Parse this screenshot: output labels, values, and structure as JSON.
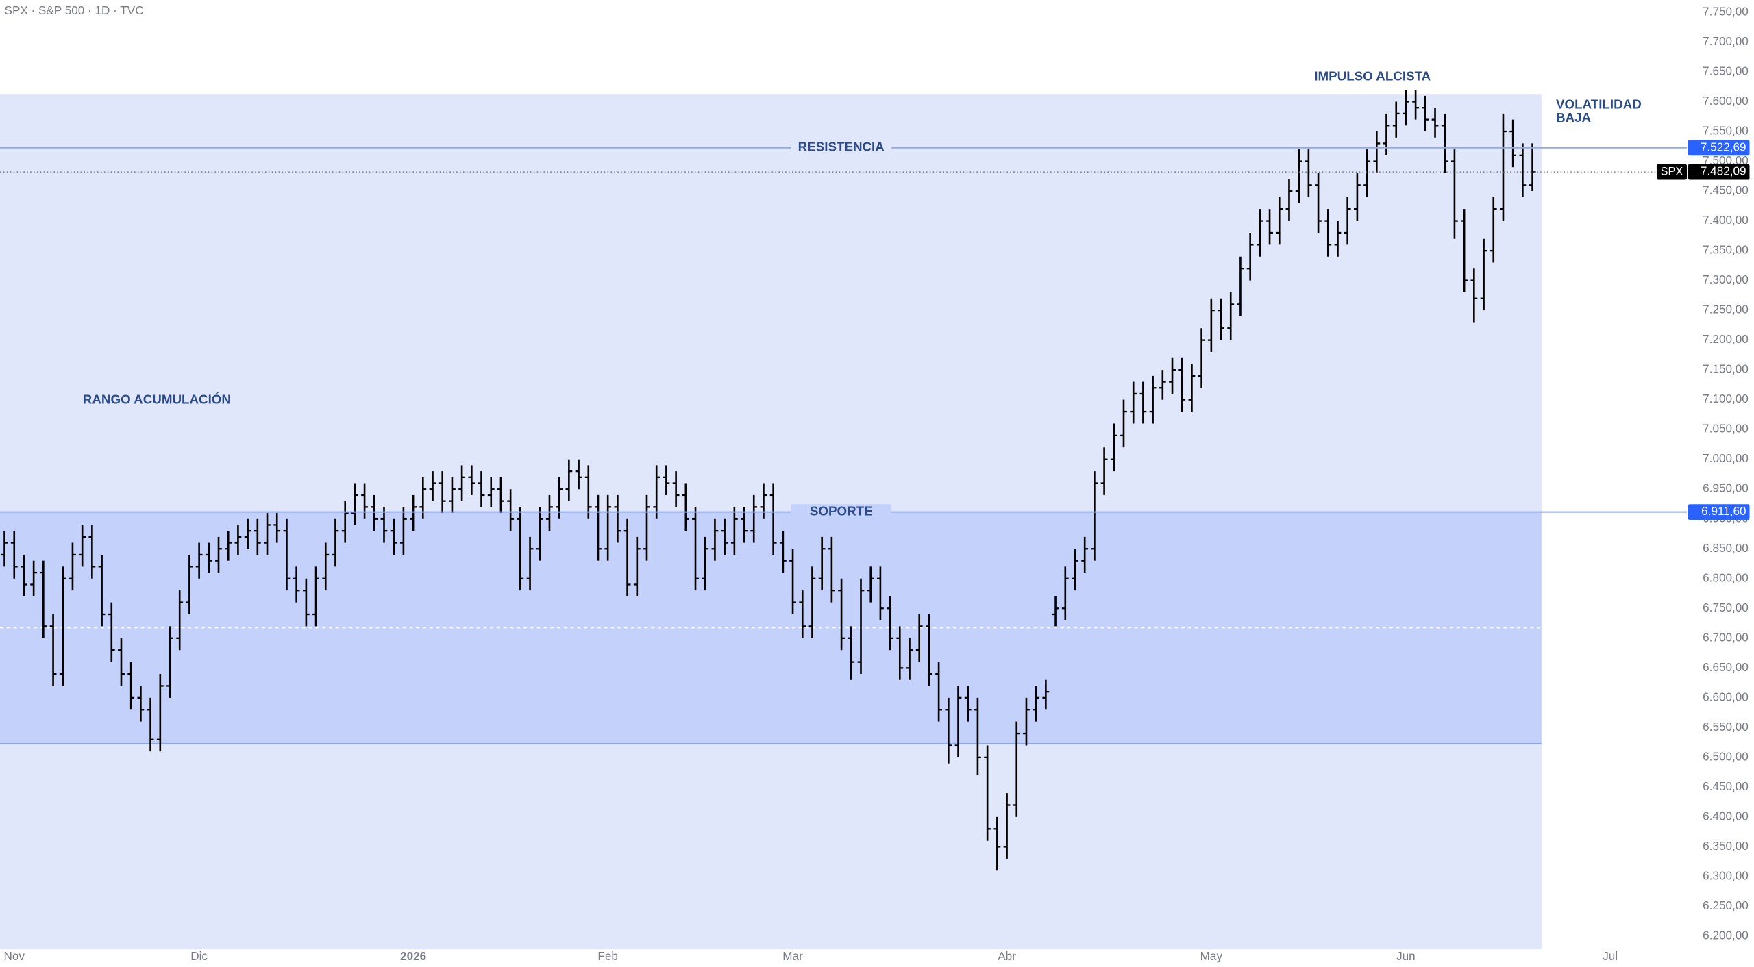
{
  "chart_data": {
    "type": "ohlc",
    "title": "SPX · S&P 500 · 1D · TVC",
    "categories": [
      null,
      null,
      null,
      null,
      null,
      null,
      null,
      null,
      null,
      null,
      null,
      null,
      null,
      null,
      null,
      null,
      null,
      null,
      null,
      null,
      null,
      null,
      null,
      null,
      null,
      null,
      null,
      null,
      null,
      null,
      null,
      null,
      null,
      null,
      null,
      null,
      null,
      null,
      null,
      null,
      null,
      null,
      null,
      null,
      null,
      null,
      null,
      null,
      null,
      null,
      null,
      null,
      null,
      null,
      null,
      null,
      null,
      null,
      null,
      null,
      null,
      null,
      null,
      null,
      null,
      null,
      null,
      null,
      null,
      null,
      null,
      null,
      null,
      null,
      null,
      null,
      null,
      null,
      null,
      null,
      null,
      null,
      null,
      null,
      null,
      null,
      null,
      null,
      null,
      null,
      null,
      null,
      null,
      null,
      null,
      null,
      null,
      null,
      null,
      null,
      null,
      null,
      null,
      null,
      null,
      null,
      null,
      null,
      null,
      null,
      null,
      null,
      null,
      null,
      null,
      null,
      null,
      null,
      null,
      null,
      null,
      null,
      null,
      null,
      null,
      null,
      null,
      null,
      null,
      null,
      null,
      null,
      null,
      null,
      null,
      null,
      null,
      null,
      null,
      null,
      null,
      null,
      null,
      null,
      null,
      null,
      null,
      null,
      null,
      null,
      null,
      null,
      null,
      null,
      null,
      null,
      null,
      null
    ],
    "color": "#000000",
    "open": [
      6840,
      6860,
      6820,
      6790,
      6810,
      6720,
      6640,
      6800,
      6840,
      6870,
      6820,
      6740,
      6680,
      6640,
      6600,
      6580,
      6530,
      6620,
      6700,
      6760,
      6820,
      6840,
      6830,
      6850,
      6860,
      6870,
      6880,
      6860,
      6890,
      6880,
      6800,
      6780,
      6740,
      6800,
      6840,
      6880,
      6910,
      6940,
      6920,
      6900,
      6880,
      6860,
      6900,
      6920,
      6950,
      6960,
      6930,
      6950,
      6970,
      6960,
      6940,
      6950,
      6930,
      6900,
      6800,
      6850,
      6900,
      6920,
      6950,
      6980,
      6970,
      6920,
      6850,
      6920,
      6880,
      6790,
      6850,
      6920,
      6970,
      6960,
      6940,
      6900,
      6800,
      6850,
      6880,
      6860,
      6900,
      6880,
      6920,
      6940,
      6860,
      6830,
      6760,
      6720,
      6800,
      6850,
      6780,
      6700,
      6660,
      6780,
      6800,
      6750,
      6700,
      6650,
      6680,
      6720,
      6640,
      6580,
      6520,
      6600,
      6580,
      6500,
      6380,
      6350,
      6420,
      6540,
      6580,
      6600,
      6740,
      6750,
      6800,
      6830,
      6850,
      6960,
      7000,
      7040,
      7080,
      7110,
      7080,
      7120,
      7130,
      7150,
      7100,
      7140,
      7200,
      7250,
      7220,
      7260,
      7320,
      7360,
      7400,
      7380,
      7420,
      7450,
      7500,
      7460,
      7400,
      7360,
      7380,
      7420,
      7460,
      7500,
      7530,
      7560,
      7580,
      7600,
      7590,
      7570,
      7560,
      7500,
      7400,
      7300,
      7270,
      7350,
      7420,
      7550,
      7510,
      7460
    ],
    "high": [
      6880,
      6880,
      6840,
      6830,
      6830,
      6740,
      6820,
      6860,
      6890,
      6890,
      6840,
      6760,
      6700,
      6660,
      6620,
      6600,
      6640,
      6720,
      6780,
      6840,
      6860,
      6860,
      6870,
      6880,
      6890,
      6900,
      6900,
      6910,
      6910,
      6900,
      6820,
      6800,
      6820,
      6860,
      6900,
      6930,
      6960,
      6960,
      6940,
      6920,
      6900,
      6920,
      6940,
      6970,
      6980,
      6980,
      6970,
      6990,
      6990,
      6980,
      6970,
      6970,
      6950,
      6920,
      6870,
      6920,
      6940,
      6970,
      7000,
      7000,
      6990,
      6940,
      6940,
      6940,
      6900,
      6870,
      6940,
      6990,
      6990,
      6980,
      6960,
      6920,
      6870,
      6900,
      6900,
      6920,
      6920,
      6940,
      6960,
      6960,
      6880,
      6850,
      6780,
      6820,
      6870,
      6870,
      6800,
      6720,
      6800,
      6820,
      6820,
      6770,
      6720,
      6700,
      6740,
      6740,
      6660,
      6600,
      6620,
      6620,
      6600,
      6520,
      6400,
      6440,
      6560,
      6600,
      6620,
      6630,
      6770,
      6820,
      6850,
      6870,
      6980,
      7020,
      7060,
      7100,
      7130,
      7130,
      7140,
      7150,
      7170,
      7170,
      7160,
      7220,
      7270,
      7270,
      7280,
      7340,
      7380,
      7420,
      7420,
      7440,
      7470,
      7520,
      7520,
      7480,
      7420,
      7400,
      7440,
      7480,
      7520,
      7550,
      7580,
      7600,
      7620,
      7620,
      7610,
      7590,
      7580,
      7520,
      7420,
      7320,
      7370,
      7440,
      7580,
      7570,
      7530,
      7530
    ],
    "low": [
      6820,
      6800,
      6770,
      6770,
      6700,
      6620,
      6620,
      6780,
      6820,
      6800,
      6720,
      6660,
      6620,
      6580,
      6560,
      6510,
      6510,
      6600,
      6680,
      6740,
      6800,
      6810,
      6810,
      6830,
      6840,
      6850,
      6840,
      6840,
      6860,
      6780,
      6760,
      6720,
      6720,
      6780,
      6820,
      6860,
      6890,
      6900,
      6880,
      6860,
      6840,
      6840,
      6880,
      6900,
      6930,
      6910,
      6910,
      6930,
      6940,
      6920,
      6920,
      6910,
      6880,
      6780,
      6780,
      6830,
      6880,
      6900,
      6930,
      6950,
      6900,
      6830,
      6830,
      6860,
      6770,
      6770,
      6830,
      6900,
      6940,
      6920,
      6880,
      6780,
      6780,
      6830,
      6840,
      6840,
      6860,
      6860,
      6900,
      6840,
      6810,
      6740,
      6700,
      6700,
      6780,
      6760,
      6680,
      6630,
      6640,
      6760,
      6730,
      6680,
      6630,
      6630,
      6660,
      6620,
      6560,
      6490,
      6500,
      6560,
      6470,
      6360,
      6310,
      6330,
      6400,
      6520,
      6560,
      6580,
      6720,
      6730,
      6780,
      6810,
      6830,
      6940,
      6980,
      7020,
      7060,
      7060,
      7060,
      7100,
      7110,
      7080,
      7080,
      7120,
      7180,
      7200,
      7200,
      7240,
      7300,
      7340,
      7360,
      7360,
      7400,
      7430,
      7440,
      7380,
      7340,
      7340,
      7360,
      7400,
      7440,
      7480,
      7510,
      7540,
      7560,
      7570,
      7550,
      7540,
      7480,
      7370,
      7280,
      7230,
      7250,
      7330,
      7400,
      7490,
      7440,
      7450
    ],
    "close": [
      6860,
      6820,
      6790,
      6810,
      6720,
      6640,
      6800,
      6840,
      6870,
      6820,
      6740,
      6680,
      6640,
      6600,
      6580,
      6530,
      6620,
      6700,
      6760,
      6820,
      6840,
      6830,
      6850,
      6860,
      6870,
      6880,
      6860,
      6890,
      6880,
      6800,
      6780,
      6740,
      6800,
      6840,
      6880,
      6910,
      6940,
      6920,
      6900,
      6880,
      6860,
      6900,
      6920,
      6950,
      6960,
      6930,
      6950,
      6970,
      6960,
      6940,
      6950,
      6930,
      6900,
      6800,
      6850,
      6900,
      6920,
      6950,
      6980,
      6970,
      6920,
      6850,
      6920,
      6880,
      6790,
      6850,
      6920,
      6970,
      6960,
      6940,
      6900,
      6800,
      6850,
      6880,
      6860,
      6900,
      6880,
      6920,
      6940,
      6860,
      6830,
      6760,
      6720,
      6800,
      6850,
      6780,
      6700,
      6660,
      6780,
      6800,
      6750,
      6700,
      6650,
      6680,
      6720,
      6640,
      6580,
      6520,
      6600,
      6580,
      6500,
      6380,
      6350,
      6420,
      6540,
      6580,
      6600,
      6610,
      6750,
      6800,
      6830,
      6850,
      6960,
      7000,
      7040,
      7080,
      7110,
      7080,
      7120,
      7130,
      7150,
      7100,
      7140,
      7200,
      7250,
      7220,
      7260,
      7320,
      7360,
      7400,
      7380,
      7420,
      7450,
      7500,
      7460,
      7400,
      7360,
      7380,
      7420,
      7460,
      7500,
      7530,
      7560,
      7580,
      7600,
      7590,
      7570,
      7560,
      7500,
      7400,
      7300,
      7270,
      7350,
      7420,
      7550,
      7510,
      7460,
      7482.09
    ],
    "xlim": [
      0,
      180
    ],
    "xticks": [
      {
        "value": 1,
        "label": "Nov"
      },
      {
        "value": 20,
        "label": "Dic"
      },
      {
        "value": 42,
        "label": "2026"
      },
      {
        "value": 62,
        "label": "Feb"
      },
      {
        "value": 81,
        "label": "Mar"
      },
      {
        "value": 103,
        "label": "Abr"
      },
      {
        "value": 124,
        "label": "May"
      },
      {
        "value": 144,
        "label": "Jun"
      },
      {
        "value": 165,
        "label": "Jul"
      }
    ],
    "ylim": [
      6178,
      7770
    ],
    "yticks": [
      {
        "value": 7750,
        "label": "7.750,00"
      },
      {
        "value": 7700,
        "label": "7.700,00"
      },
      {
        "value": 7650,
        "label": "7.650,00"
      },
      {
        "value": 7600,
        "label": "7.600,00"
      },
      {
        "value": 7550,
        "label": "7.550,00"
      },
      {
        "value": 7500,
        "label": "7.500,00"
      },
      {
        "value": 7450,
        "label": "7.450,00"
      },
      {
        "value": 7400,
        "label": "7.400,00"
      },
      {
        "value": 7350,
        "label": "7.350,00"
      },
      {
        "value": 7300,
        "label": "7.300,00"
      },
      {
        "value": 7250,
        "label": "7.250,00"
      },
      {
        "value": 7200,
        "label": "7.200,00"
      },
      {
        "value": 7150,
        "label": "7.150,00"
      },
      {
        "value": 7100,
        "label": "7.100,00"
      },
      {
        "value": 7050,
        "label": "7.050,00"
      },
      {
        "value": 7000,
        "label": "7.000,00"
      },
      {
        "value": 6950,
        "label": "6.950,00"
      },
      {
        "value": 6900,
        "label": "6.900,00"
      },
      {
        "value": 6850,
        "label": "6.850,00"
      },
      {
        "value": 6800,
        "label": "6.800,00"
      },
      {
        "value": 6750,
        "label": "6.750,00"
      },
      {
        "value": 6700,
        "label": "6.700,00"
      },
      {
        "value": 6650,
        "label": "6.650,00"
      },
      {
        "value": 6600,
        "label": "6.600,00"
      },
      {
        "value": 6550,
        "label": "6.550,00"
      },
      {
        "value": 6500,
        "label": "6.500,00"
      },
      {
        "value": 6450,
        "label": "6.450,00"
      },
      {
        "value": 6400,
        "label": "6.400,00"
      },
      {
        "value": 6350,
        "label": "6.350,00"
      },
      {
        "value": 6300,
        "label": "6.300,00"
      },
      {
        "value": 6250,
        "label": "6.250,00"
      },
      {
        "value": 6200,
        "label": "6.200,00"
      }
    ],
    "grid": false,
    "boxes": [
      {
        "top": 7613,
        "bottom": 6178,
        "color": "#e0e7fb"
      },
      {
        "top": 6911.6,
        "bottom": 6523,
        "color": "#c4d2fb"
      }
    ],
    "levels": [
      {
        "label": "RESISTENCIA",
        "value": 7522.69,
        "value_label": "7.522,69",
        "color": "#2962ff"
      },
      {
        "label": "SOPORTE",
        "value": 6911.6,
        "value_label": "6.911,60",
        "color": "#2962ff"
      }
    ],
    "last_price": {
      "symbol": "SPX",
      "value": 7482.09,
      "value_label": "7.482,09"
    },
    "annotations": [
      "RANGO ACUMULACIÓN",
      "IMPULSO ALCISTA",
      "VOLATILIDAD",
      "BAJA"
    ]
  }
}
